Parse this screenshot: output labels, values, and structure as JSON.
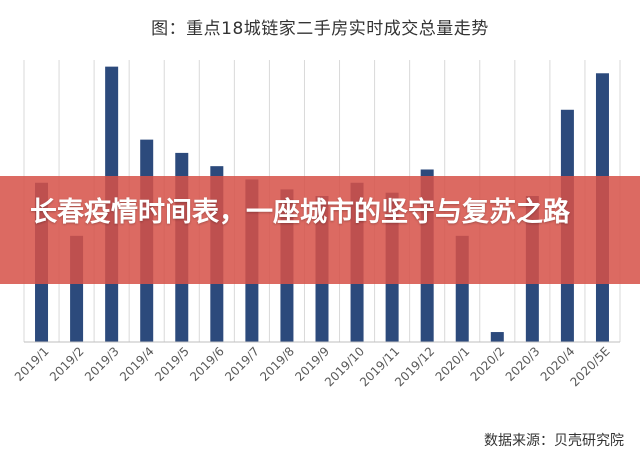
{
  "overlay": {
    "headline": "长春疫情时间表，一座城市的坚守与复苏之路"
  },
  "source_note": "数据来源：贝壳研究院",
  "chart_data": {
    "type": "bar",
    "title": "图：重点18城链家二手房实时成交总量走势",
    "xlabel": "",
    "ylabel": "",
    "categories": [
      "2019/1",
      "2019/2",
      "2019/3",
      "2019/4",
      "2019/5",
      "2019/6",
      "2019/7",
      "2019/8",
      "2019/9",
      "2019/10",
      "2019/11",
      "2019/12",
      "2020/1",
      "2020/2",
      "2020/3",
      "2020/4",
      "2020/5E"
    ],
    "values": [
      48,
      32,
      83,
      61,
      57,
      53,
      49,
      46,
      44,
      48,
      45,
      52,
      32,
      3,
      44,
      70,
      81
    ],
    "ylim": [
      0,
      85
    ],
    "grid": true,
    "bar_color": "#2c4a7c",
    "grid_color": "#d9d9d9",
    "banner_color": "#d65248"
  }
}
